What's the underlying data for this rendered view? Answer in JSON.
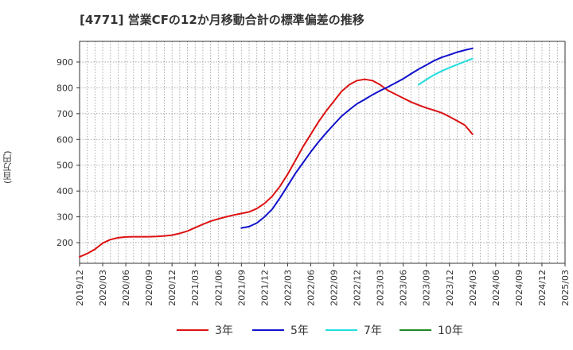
{
  "chart_data": {
    "type": "line",
    "title": "[4771]  営業CFの12か月移動合計の標準偏差の推移",
    "ylabel": "(百万円)",
    "xlabel": "",
    "ylim": [
      120,
      980
    ],
    "yticks": [
      200,
      300,
      400,
      500,
      600,
      700,
      800,
      900
    ],
    "x_categories": [
      "2019/12",
      "2020/03",
      "2020/06",
      "2020/09",
      "2020/12",
      "2021/03",
      "2021/06",
      "2021/09",
      "2021/12",
      "2022/03",
      "2022/06",
      "2022/09",
      "2022/12",
      "2023/03",
      "2023/06",
      "2023/09",
      "2023/12",
      "2024/03",
      "2024/06",
      "2024/09",
      "2024/12",
      "2025/03"
    ],
    "grid": true,
    "legend_position": "bottom",
    "series": [
      {
        "name": "3年",
        "color": "#dd1111",
        "x": [
          "2019/12",
          "2020/01",
          "2020/02",
          "2020/03",
          "2020/04",
          "2020/05",
          "2020/06",
          "2020/07",
          "2020/08",
          "2020/09",
          "2020/10",
          "2020/11",
          "2020/12",
          "2021/01",
          "2021/02",
          "2021/03",
          "2021/04",
          "2021/05",
          "2021/06",
          "2021/07",
          "2021/08",
          "2021/09",
          "2021/10",
          "2021/11",
          "2021/12",
          "2022/01",
          "2022/02",
          "2022/03",
          "2022/04",
          "2022/05",
          "2022/06",
          "2022/07",
          "2022/08",
          "2022/09",
          "2022/10",
          "2022/11",
          "2022/12",
          "2023/01",
          "2023/02",
          "2023/03",
          "2023/04",
          "2023/05",
          "2023/06",
          "2023/07",
          "2023/08",
          "2023/09",
          "2023/10",
          "2023/11",
          "2023/12",
          "2024/01",
          "2024/02",
          "2024/03"
        ],
        "values": [
          145,
          158,
          175,
          198,
          212,
          219,
          222,
          223,
          223,
          223,
          224,
          226,
          229,
          236,
          245,
          258,
          271,
          283,
          292,
          300,
          307,
          313,
          319,
          332,
          352,
          380,
          418,
          465,
          518,
          572,
          620,
          668,
          710,
          748,
          786,
          812,
          828,
          833,
          828,
          812,
          790,
          775,
          760,
          745,
          733,
          722,
          713,
          703,
          688,
          672,
          655,
          620
        ]
      },
      {
        "name": "5年",
        "color": "#1111cc",
        "x": [
          "2021/09",
          "2021/10",
          "2021/11",
          "2021/12",
          "2022/01",
          "2022/02",
          "2022/03",
          "2022/04",
          "2022/05",
          "2022/06",
          "2022/07",
          "2022/08",
          "2022/09",
          "2022/10",
          "2022/11",
          "2022/12",
          "2023/01",
          "2023/02",
          "2023/03",
          "2023/04",
          "2023/05",
          "2023/06",
          "2023/07",
          "2023/08",
          "2023/09",
          "2023/10",
          "2023/11",
          "2023/12",
          "2024/01",
          "2024/02",
          "2024/03"
        ],
        "values": [
          257,
          262,
          276,
          300,
          330,
          373,
          420,
          468,
          510,
          552,
          590,
          625,
          658,
          690,
          715,
          738,
          755,
          773,
          789,
          803,
          819,
          835,
          854,
          872,
          888,
          905,
          918,
          928,
          938,
          946,
          953
        ]
      },
      {
        "name": "7年",
        "color": "#22dddd",
        "x": [
          "2023/08",
          "2023/09",
          "2023/10",
          "2023/11",
          "2023/12",
          "2024/01",
          "2024/02",
          "2024/03"
        ],
        "values": [
          812,
          832,
          850,
          865,
          878,
          890,
          902,
          913
        ]
      },
      {
        "name": "10年",
        "color": "#228822",
        "x": [],
        "values": []
      }
    ]
  }
}
